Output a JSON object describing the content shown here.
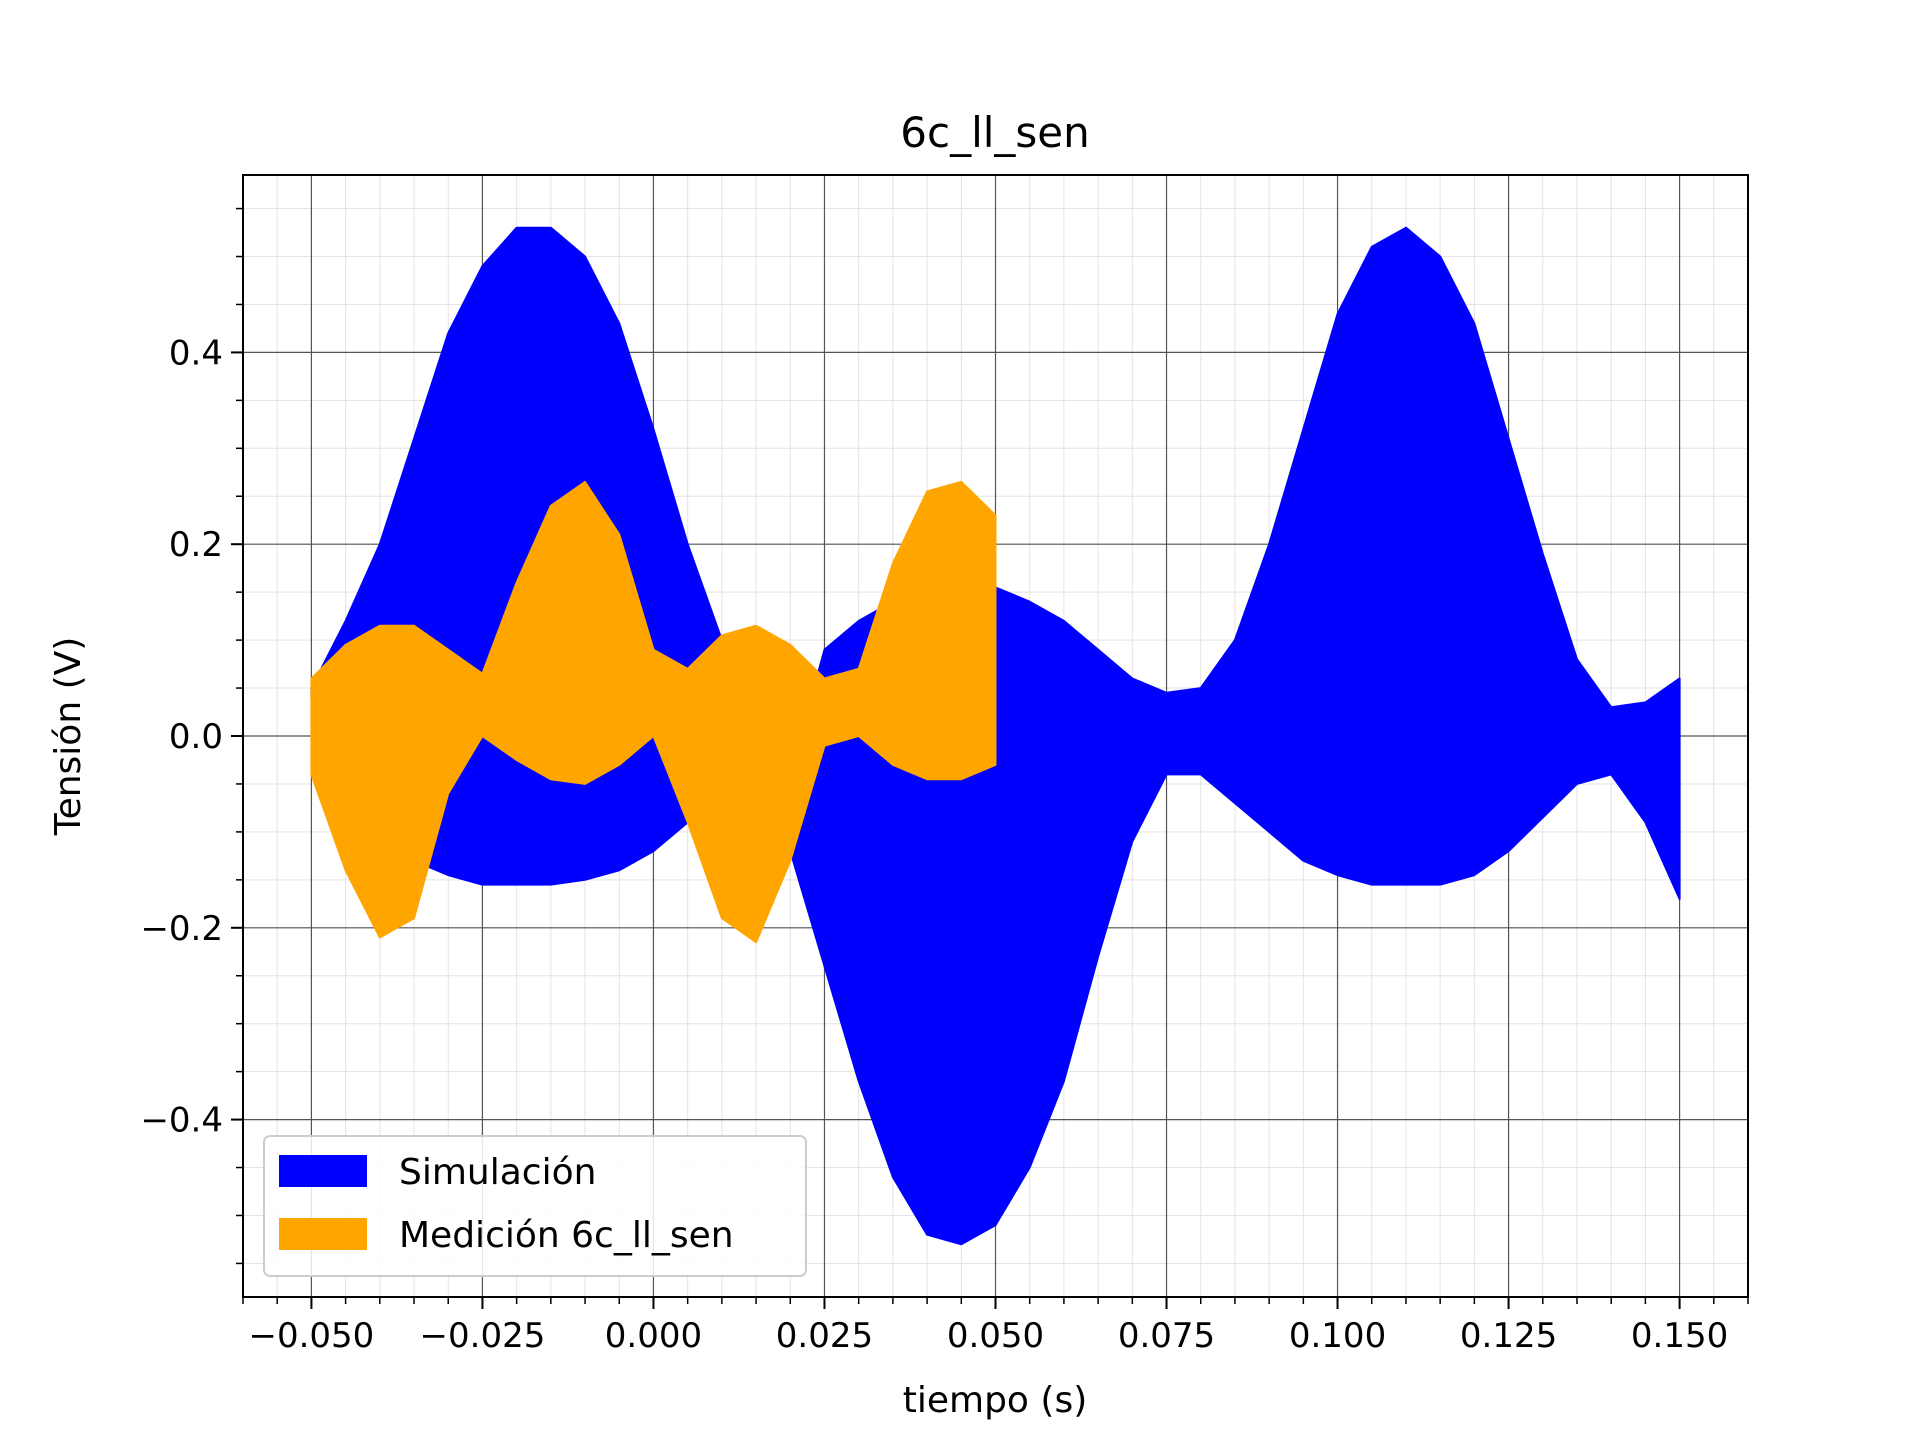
{
  "chart_data": {
    "type": "area",
    "title": "6c_ll_sen",
    "xlabel": "tiempo (s)",
    "ylabel": "Tensión (V)",
    "xlim": [
      -0.06,
      0.16
    ],
    "ylim": [
      -0.585,
      0.585
    ],
    "x_ticks": [
      -0.05,
      -0.025,
      0.0,
      0.025,
      0.05,
      0.075,
      0.1,
      0.125,
      0.15
    ],
    "x_tick_labels": [
      "−0.050",
      "−0.025",
      "0.000",
      "0.025",
      "0.050",
      "0.075",
      "0.100",
      "0.125",
      "0.150"
    ],
    "y_ticks": [
      -0.4,
      -0.2,
      0.0,
      0.2,
      0.4
    ],
    "y_tick_labels": [
      "−0.4",
      "−0.2",
      "0.0",
      "0.2",
      "0.4"
    ],
    "grid": "major and minor",
    "legend_position": "lower-left",
    "series": [
      {
        "name": "Simulación",
        "color": "#0000ff",
        "x": [
          -0.05,
          -0.045,
          -0.04,
          -0.035,
          -0.03,
          -0.025,
          -0.02,
          -0.015,
          -0.01,
          -0.005,
          0.0,
          0.005,
          0.01,
          0.015,
          0.02,
          0.025,
          0.03,
          0.035,
          0.04,
          0.045,
          0.05,
          0.055,
          0.06,
          0.065,
          0.07,
          0.075,
          0.08,
          0.085,
          0.09,
          0.095,
          0.1,
          0.105,
          0.11,
          0.115,
          0.12,
          0.125,
          0.13,
          0.135,
          0.14,
          0.145,
          0.15
        ],
        "upper": [
          0.05,
          0.12,
          0.2,
          0.31,
          0.42,
          0.49,
          0.53,
          0.53,
          0.5,
          0.43,
          0.32,
          0.2,
          0.1,
          0.02,
          -0.04,
          0.09,
          0.12,
          0.14,
          0.155,
          0.16,
          0.155,
          0.14,
          0.12,
          0.09,
          0.06,
          0.045,
          0.05,
          0.1,
          0.2,
          0.32,
          0.44,
          0.51,
          0.53,
          0.5,
          0.43,
          0.31,
          0.19,
          0.08,
          0.03,
          0.035,
          0.06
        ],
        "lower": [
          0.04,
          -0.06,
          -0.1,
          -0.13,
          -0.145,
          -0.155,
          -0.155,
          -0.155,
          -0.15,
          -0.14,
          -0.12,
          -0.09,
          -0.08,
          -0.09,
          -0.12,
          -0.24,
          -0.36,
          -0.46,
          -0.52,
          -0.53,
          -0.51,
          -0.45,
          -0.36,
          -0.23,
          -0.11,
          -0.04,
          -0.04,
          -0.07,
          -0.1,
          -0.13,
          -0.145,
          -0.155,
          -0.155,
          -0.155,
          -0.145,
          -0.12,
          -0.085,
          -0.05,
          -0.04,
          -0.09,
          -0.17
        ]
      },
      {
        "name": "Medición 6c_ll_sen",
        "color": "#ffa500",
        "x": [
          -0.05,
          -0.045,
          -0.04,
          -0.035,
          -0.03,
          -0.025,
          -0.02,
          -0.015,
          -0.01,
          -0.005,
          0.0,
          0.005,
          0.01,
          0.015,
          0.02,
          0.025,
          0.03,
          0.035,
          0.04,
          0.045,
          0.05
        ],
        "upper": [
          0.06,
          0.095,
          0.115,
          0.115,
          0.09,
          0.065,
          0.16,
          0.24,
          0.265,
          0.21,
          0.09,
          0.07,
          0.105,
          0.115,
          0.095,
          0.06,
          0.07,
          0.18,
          0.255,
          0.265,
          0.23
        ],
        "lower": [
          -0.04,
          -0.14,
          -0.21,
          -0.19,
          -0.06,
          0.0,
          -0.025,
          -0.045,
          -0.05,
          -0.03,
          0.0,
          -0.09,
          -0.19,
          -0.215,
          -0.13,
          -0.01,
          0.0,
          -0.03,
          -0.045,
          -0.045,
          -0.03
        ]
      }
    ]
  }
}
